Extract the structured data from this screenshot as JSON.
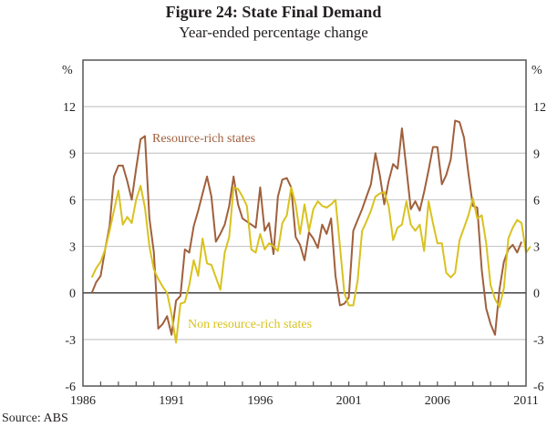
{
  "chart_data": {
    "type": "line",
    "title": "Figure 24: State Final Demand",
    "subtitle": "Year-ended percentage change",
    "source": "Source:  ABS",
    "ylabel_left": "%",
    "ylabel_right": "%",
    "ylim": [
      -6,
      15
    ],
    "yticks": [
      -6,
      -3,
      0,
      3,
      6,
      9,
      12
    ],
    "ytick_labels": [
      "-6",
      "-3",
      "0",
      "3",
      "6",
      "9",
      "12"
    ],
    "xlim": [
      1986,
      2011
    ],
    "xticks_major": [
      1986,
      1991,
      1996,
      2001,
      2006,
      2011
    ],
    "xtick_labels": [
      "1986",
      "1991",
      "1996",
      "2001",
      "2006",
      "2011"
    ],
    "grid": true,
    "x_start": 1986.5,
    "x_step": 0.25,
    "series": [
      {
        "name": "Resource-rich states",
        "color": "#a0603c",
        "label": "Resource-rich states",
        "values": [
          0.0,
          0.7,
          1.1,
          2.8,
          4.3,
          7.5,
          8.2,
          8.2,
          7.2,
          6.0,
          8.0,
          9.9,
          10.1,
          4.8,
          2.6,
          -2.3,
          -2.0,
          -1.5,
          -2.7,
          -0.5,
          -0.2,
          2.8,
          2.6,
          4.3,
          5.3,
          6.4,
          7.5,
          6.2,
          3.3,
          3.8,
          4.4,
          5.6,
          7.5,
          5.7,
          4.8,
          4.6,
          4.4,
          4.2,
          6.8,
          4.0,
          4.5,
          2.5,
          6.2,
          7.3,
          7.4,
          6.8,
          3.6,
          3.1,
          2.1,
          3.9,
          3.5,
          2.9,
          4.4,
          3.8,
          4.8,
          1.1,
          -0.8,
          -0.7,
          -0.3,
          4.0,
          4.7,
          5.4,
          6.2,
          7.0,
          9.0,
          7.6,
          5.7,
          7.2,
          8.3,
          8.0,
          10.6,
          8.0,
          5.4,
          5.9,
          5.3,
          6.5,
          7.9,
          9.4,
          9.4,
          7.0,
          7.6,
          8.6,
          11.1,
          11.0,
          10.0,
          7.7,
          5.6,
          5.5,
          1.5,
          -1.0,
          -2.0,
          -2.7,
          0.2,
          2.0,
          2.8,
          3.1,
          2.6,
          3.3
        ]
      },
      {
        "name": "Non resource-rich states",
        "color": "#d9c21f",
        "label": "Non resource-rich states",
        "values": [
          1.0,
          1.6,
          2.0,
          2.8,
          4.0,
          5.3,
          6.6,
          4.4,
          4.9,
          4.5,
          6.0,
          6.9,
          5.5,
          3.0,
          1.5,
          0.9,
          0.4,
          0.0,
          -1.4,
          -3.2,
          -0.7,
          -0.6,
          0.5,
          2.1,
          1.1,
          3.5,
          1.9,
          1.8,
          1.0,
          0.2,
          2.6,
          3.6,
          6.8,
          6.7,
          6.2,
          5.6,
          2.8,
          2.6,
          3.8,
          2.8,
          3.2,
          3.0,
          2.7,
          4.5,
          5.0,
          6.8,
          5.7,
          3.8,
          5.7,
          4.0,
          5.4,
          5.9,
          5.6,
          5.5,
          5.7,
          6.0,
          3.0,
          0.0,
          -0.8,
          -0.8,
          0.8,
          4.0,
          4.6,
          5.3,
          6.2,
          6.4,
          6.5,
          5.6,
          3.4,
          4.2,
          4.4,
          5.9,
          4.4,
          4.0,
          4.4,
          2.7,
          5.9,
          4.5,
          3.2,
          3.2,
          1.3,
          1.0,
          1.3,
          3.4,
          4.2,
          5.0,
          6.1,
          4.8,
          5.0,
          3.2,
          0.5,
          -0.4,
          -0.9,
          0.3,
          3.5,
          4.2,
          4.7,
          4.5,
          2.6,
          3.0
        ]
      }
    ]
  }
}
